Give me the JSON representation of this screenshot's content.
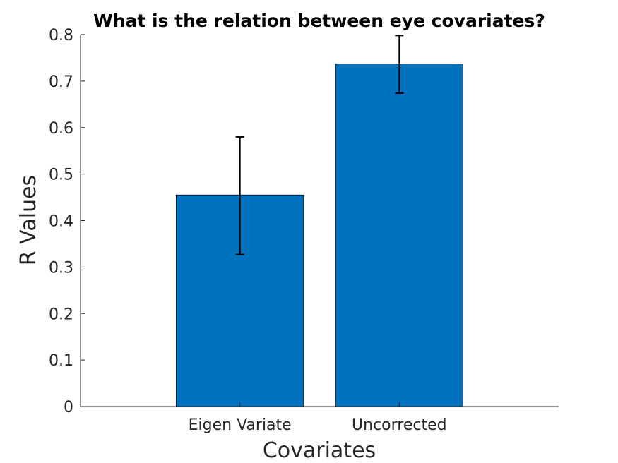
{
  "chart_data": {
    "type": "bar",
    "title": "What is the relation between eye covariates?",
    "xlabel": "Covariates",
    "ylabel": "R Values",
    "categories": [
      "Eigen Variate",
      "Uncorrected"
    ],
    "values": [
      0.455,
      0.737
    ],
    "error_low": [
      0.327,
      0.674
    ],
    "error_high": [
      0.58,
      0.798
    ],
    "ylim": [
      0,
      0.8
    ],
    "yticks": [
      0,
      0.1,
      0.2,
      0.3,
      0.4,
      0.5,
      0.6,
      0.7,
      0.8
    ],
    "ytick_labels": [
      "0",
      "0.1",
      "0.2",
      "0.3",
      "0.4",
      "0.5",
      "0.6",
      "0.7",
      "0.8"
    ],
    "bar_color": "#0072BD",
    "grid": false,
    "legend": "none"
  }
}
